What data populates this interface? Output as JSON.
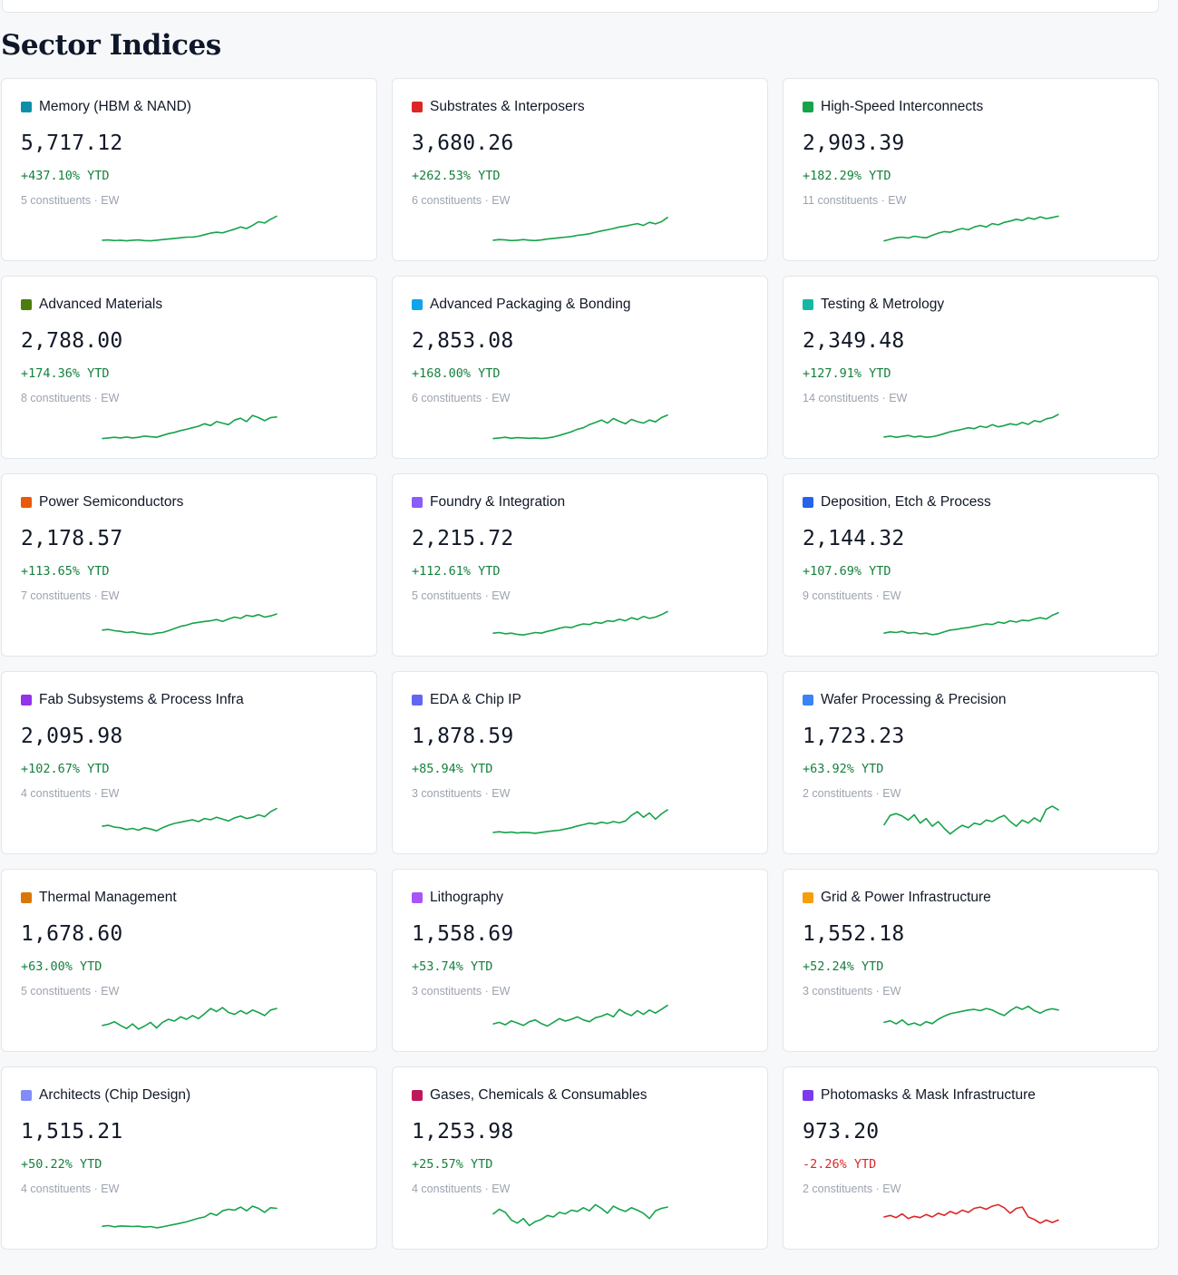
{
  "page_title": "Sector Indices",
  "colors": {
    "positive": "#15803d",
    "negative": "#dc2626",
    "spark_up": "#16a34a",
    "spark_down": "#dc2626"
  },
  "sectors": [
    {
      "name": "Memory (HBM & NAND)",
      "value": "5,717.12",
      "change": "+437.10% YTD",
      "meta": "5 constituents · EW",
      "color": "#0e8fa8",
      "trend": "up",
      "spark": [
        0.12,
        0.13,
        0.11,
        0.12,
        0.1,
        0.12,
        0.13,
        0.11,
        0.1,
        0.12,
        0.14,
        0.16,
        0.18,
        0.2,
        0.22,
        0.22,
        0.25,
        0.3,
        0.35,
        0.38,
        0.36,
        0.42,
        0.48,
        0.55,
        0.5,
        0.6,
        0.72,
        0.68,
        0.8,
        0.9
      ]
    },
    {
      "name": "Substrates & Interposers",
      "value": "3,680.26",
      "change": "+262.53% YTD",
      "meta": "6 constituents · EW",
      "color": "#dc2626",
      "trend": "up",
      "spark": [
        0.12,
        0.14,
        0.13,
        0.11,
        0.12,
        0.14,
        0.12,
        0.11,
        0.13,
        0.16,
        0.18,
        0.2,
        0.22,
        0.24,
        0.28,
        0.3,
        0.33,
        0.38,
        0.42,
        0.46,
        0.5,
        0.55,
        0.58,
        0.62,
        0.66,
        0.6,
        0.7,
        0.65,
        0.72,
        0.86
      ]
    },
    {
      "name": "High-Speed Interconnects",
      "value": "2,903.39",
      "change": "+182.29% YTD",
      "meta": "11 constituents · EW",
      "color": "#16a34a",
      "trend": "up",
      "spark": [
        0.1,
        0.15,
        0.2,
        0.22,
        0.19,
        0.25,
        0.22,
        0.2,
        0.28,
        0.35,
        0.4,
        0.38,
        0.45,
        0.5,
        0.46,
        0.55,
        0.6,
        0.55,
        0.66,
        0.62,
        0.7,
        0.74,
        0.8,
        0.76,
        0.85,
        0.8,
        0.88,
        0.82,
        0.86,
        0.9
      ]
    },
    {
      "name": "Advanced Materials",
      "value": "2,788.00",
      "change": "+174.36% YTD",
      "meta": "8 constituents · EW",
      "color": "#4d7c0f",
      "trend": "up",
      "spark": [
        0.1,
        0.12,
        0.14,
        0.12,
        0.15,
        0.12,
        0.14,
        0.18,
        0.16,
        0.14,
        0.2,
        0.26,
        0.3,
        0.36,
        0.4,
        0.45,
        0.5,
        0.58,
        0.52,
        0.65,
        0.6,
        0.55,
        0.7,
        0.76,
        0.65,
        0.85,
        0.78,
        0.68,
        0.78,
        0.8
      ]
    },
    {
      "name": "Advanced Packaging & Bonding",
      "value": "2,853.08",
      "change": "+168.00% YTD",
      "meta": "6 constituents · EW",
      "color": "#0ea5e9",
      "trend": "up",
      "spark": [
        0.1,
        0.12,
        0.14,
        0.11,
        0.13,
        0.12,
        0.11,
        0.12,
        0.1,
        0.12,
        0.15,
        0.2,
        0.26,
        0.32,
        0.4,
        0.45,
        0.55,
        0.62,
        0.7,
        0.6,
        0.75,
        0.66,
        0.58,
        0.72,
        0.65,
        0.6,
        0.7,
        0.64,
        0.78,
        0.86
      ]
    },
    {
      "name": "Testing & Metrology",
      "value": "2,349.48",
      "change": "+127.91% YTD",
      "meta": "14 constituents · EW",
      "color": "#14b8a6",
      "trend": "up",
      "spark": [
        0.15,
        0.18,
        0.14,
        0.17,
        0.2,
        0.15,
        0.18,
        0.14,
        0.16,
        0.2,
        0.26,
        0.32,
        0.36,
        0.4,
        0.45,
        0.42,
        0.5,
        0.46,
        0.55,
        0.48,
        0.52,
        0.58,
        0.54,
        0.62,
        0.56,
        0.68,
        0.64,
        0.74,
        0.78,
        0.88
      ]
    },
    {
      "name": "Power Semiconductors",
      "value": "2,178.57",
      "change": "+113.65% YTD",
      "meta": "7 constituents · EW",
      "color": "#ea580c",
      "trend": "up",
      "spark": [
        0.3,
        0.32,
        0.28,
        0.26,
        0.22,
        0.24,
        0.2,
        0.18,
        0.16,
        0.2,
        0.22,
        0.28,
        0.35,
        0.42,
        0.46,
        0.52,
        0.55,
        0.58,
        0.6,
        0.64,
        0.58,
        0.66,
        0.72,
        0.68,
        0.78,
        0.74,
        0.8,
        0.72,
        0.76,
        0.82
      ]
    },
    {
      "name": "Foundry & Integration",
      "value": "2,215.72",
      "change": "+112.61% YTD",
      "meta": "5 constituents · EW",
      "color": "#8b5cf6",
      "trend": "up",
      "spark": [
        0.2,
        0.22,
        0.18,
        0.2,
        0.16,
        0.14,
        0.18,
        0.22,
        0.2,
        0.26,
        0.3,
        0.36,
        0.4,
        0.38,
        0.45,
        0.5,
        0.48,
        0.55,
        0.52,
        0.6,
        0.58,
        0.65,
        0.6,
        0.7,
        0.64,
        0.74,
        0.68,
        0.72,
        0.8,
        0.9
      ]
    },
    {
      "name": "Deposition, Etch & Process",
      "value": "2,144.32",
      "change": "+107.69% YTD",
      "meta": "9 constituents · EW",
      "color": "#2563eb",
      "trend": "up",
      "spark": [
        0.2,
        0.24,
        0.22,
        0.26,
        0.2,
        0.22,
        0.18,
        0.2,
        0.15,
        0.18,
        0.24,
        0.3,
        0.32,
        0.36,
        0.38,
        0.42,
        0.46,
        0.5,
        0.48,
        0.56,
        0.52,
        0.6,
        0.56,
        0.62,
        0.6,
        0.66,
        0.7,
        0.66,
        0.78,
        0.86
      ]
    },
    {
      "name": "Fab Subsystems & Process Infra",
      "value": "2,095.98",
      "change": "+102.67% YTD",
      "meta": "4 constituents · EW",
      "color": "#9333ea",
      "trend": "up",
      "spark": [
        0.35,
        0.38,
        0.32,
        0.3,
        0.24,
        0.28,
        0.22,
        0.3,
        0.26,
        0.2,
        0.3,
        0.38,
        0.44,
        0.48,
        0.52,
        0.56,
        0.5,
        0.6,
        0.56,
        0.64,
        0.58,
        0.52,
        0.62,
        0.68,
        0.6,
        0.64,
        0.72,
        0.66,
        0.82,
        0.92
      ]
    },
    {
      "name": "EDA & Chip IP",
      "value": "1,878.59",
      "change": "+85.94% YTD",
      "meta": "3 constituents · EW",
      "color": "#6366f1",
      "trend": "up",
      "spark": [
        0.15,
        0.17,
        0.14,
        0.16,
        0.13,
        0.15,
        0.14,
        0.12,
        0.15,
        0.18,
        0.2,
        0.22,
        0.26,
        0.3,
        0.36,
        0.4,
        0.45,
        0.42,
        0.48,
        0.44,
        0.5,
        0.46,
        0.52,
        0.7,
        0.82,
        0.64,
        0.78,
        0.58,
        0.75,
        0.88
      ]
    },
    {
      "name": "Wafer Processing & Precision",
      "value": "1,723.23",
      "change": "+63.92% YTD",
      "meta": "2 constituents · EW",
      "color": "#3b82f6",
      "trend": "up",
      "spark": [
        0.4,
        0.7,
        0.76,
        0.68,
        0.55,
        0.72,
        0.45,
        0.6,
        0.35,
        0.5,
        0.28,
        0.1,
        0.25,
        0.38,
        0.3,
        0.45,
        0.4,
        0.55,
        0.5,
        0.62,
        0.7,
        0.5,
        0.35,
        0.55,
        0.45,
        0.62,
        0.5,
        0.9,
        1.0,
        0.88
      ]
    },
    {
      "name": "Thermal Management",
      "value": "1,678.60",
      "change": "+63.00% YTD",
      "meta": "5 constituents · EW",
      "color": "#d97706",
      "trend": "up",
      "spark": [
        0.3,
        0.34,
        0.42,
        0.3,
        0.2,
        0.35,
        0.18,
        0.28,
        0.4,
        0.22,
        0.4,
        0.5,
        0.44,
        0.58,
        0.5,
        0.62,
        0.52,
        0.68,
        0.85,
        0.75,
        0.88,
        0.72,
        0.66,
        0.78,
        0.68,
        0.8,
        0.72,
        0.62,
        0.8,
        0.85
      ]
    },
    {
      "name": "Lithography",
      "value": "1,558.69",
      "change": "+53.74% YTD",
      "meta": "3 constituents · EW",
      "color": "#a855f7",
      "trend": "up",
      "spark": [
        0.35,
        0.4,
        0.32,
        0.45,
        0.38,
        0.3,
        0.42,
        0.48,
        0.36,
        0.28,
        0.4,
        0.52,
        0.44,
        0.5,
        0.58,
        0.48,
        0.42,
        0.55,
        0.6,
        0.68,
        0.58,
        0.82,
        0.7,
        0.62,
        0.78,
        0.66,
        0.8,
        0.7,
        0.82,
        0.95
      ]
    },
    {
      "name": "Grid & Power Infrastructure",
      "value": "1,552.18",
      "change": "+52.24% YTD",
      "meta": "3 constituents · EW",
      "color": "#f59e0b",
      "trend": "up",
      "spark": [
        0.4,
        0.45,
        0.35,
        0.48,
        0.32,
        0.38,
        0.3,
        0.42,
        0.36,
        0.5,
        0.6,
        0.68,
        0.72,
        0.76,
        0.8,
        0.82,
        0.78,
        0.85,
        0.8,
        0.7,
        0.62,
        0.78,
        0.9,
        0.82,
        0.92,
        0.78,
        0.7,
        0.8,
        0.84,
        0.8
      ]
    },
    {
      "name": "Architects (Chip Design)",
      "value": "1,515.21",
      "change": "+50.22% YTD",
      "meta": "4 constituents · EW",
      "color": "#818cf8",
      "trend": "up",
      "spark": [
        0.2,
        0.22,
        0.18,
        0.21,
        0.2,
        0.19,
        0.2,
        0.17,
        0.19,
        0.15,
        0.18,
        0.22,
        0.26,
        0.3,
        0.34,
        0.4,
        0.46,
        0.5,
        0.62,
        0.55,
        0.7,
        0.75,
        0.72,
        0.82,
        0.7,
        0.85,
        0.78,
        0.65,
        0.8,
        0.78
      ]
    },
    {
      "name": "Gases, Chemicals & Consumables",
      "value": "1,253.98",
      "change": "+25.57% YTD",
      "meta": "4 constituents · EW",
      "color": "#be185d",
      "trend": "up",
      "spark": [
        0.6,
        0.75,
        0.65,
        0.4,
        0.3,
        0.45,
        0.22,
        0.35,
        0.42,
        0.55,
        0.5,
        0.65,
        0.6,
        0.72,
        0.68,
        0.8,
        0.7,
        0.9,
        0.78,
        0.62,
        0.85,
        0.75,
        0.68,
        0.8,
        0.72,
        0.62,
        0.45,
        0.7,
        0.78,
        0.82
      ]
    },
    {
      "name": "Photomasks & Mask Infrastructure",
      "value": "973.20",
      "change": "-2.26% YTD",
      "meta": "2 constituents · EW",
      "color": "#7c3aed",
      "trend": "down",
      "spark": [
        0.5,
        0.55,
        0.48,
        0.6,
        0.45,
        0.52,
        0.48,
        0.58,
        0.5,
        0.62,
        0.55,
        0.68,
        0.6,
        0.72,
        0.65,
        0.78,
        0.82,
        0.75,
        0.85,
        0.9,
        0.8,
        0.62,
        0.78,
        0.82,
        0.5,
        0.42,
        0.3,
        0.4,
        0.32,
        0.4
      ]
    }
  ]
}
